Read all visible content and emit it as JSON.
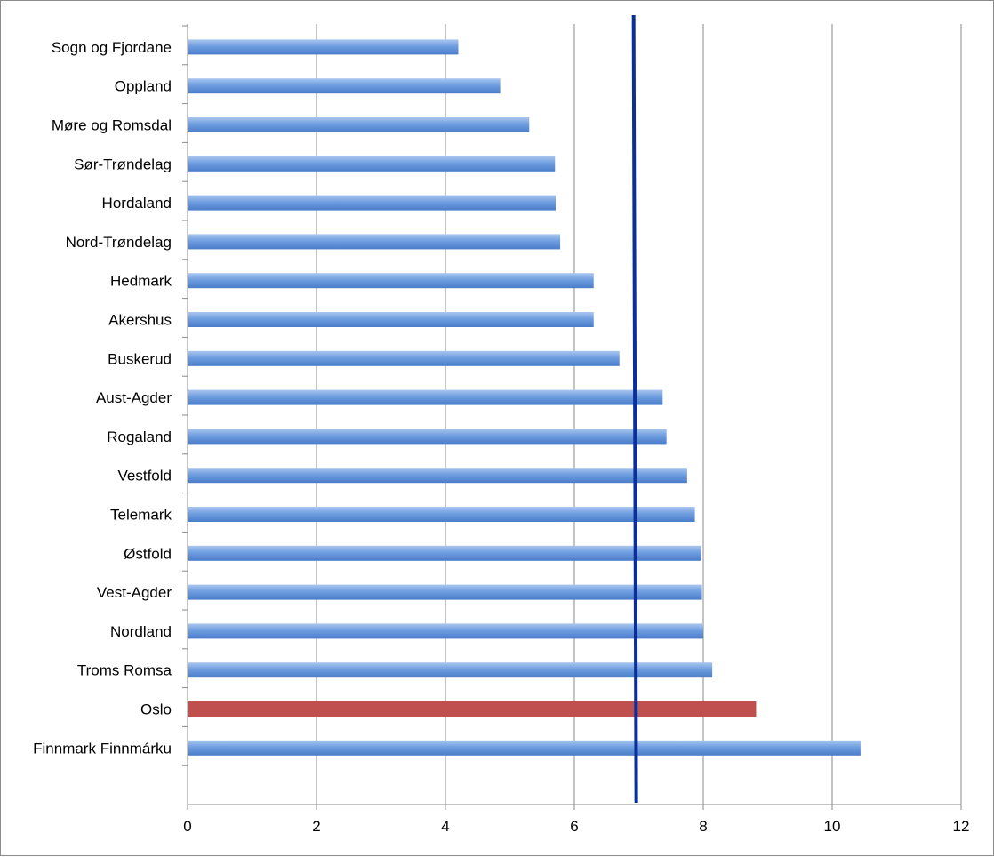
{
  "chart_data": {
    "type": "bar",
    "orientation": "horizontal",
    "title": "",
    "xlabel": "",
    "ylabel": "",
    "categories": [
      "Sogn og Fjordane",
      "Oppland",
      "Møre og Romsdal",
      "Sør-Trøndelag",
      "Hordaland",
      "Nord-Trøndelag",
      "Hedmark",
      "Akershus",
      "Buskerud",
      "Aust-Agder",
      "Rogaland",
      "Vestfold",
      "Telemark",
      "Østfold",
      "Vest-Agder",
      "Nordland",
      "Troms Romsa",
      "Oslo",
      "Finnmark Finnmárku"
    ],
    "values": [
      4.2,
      4.85,
      5.3,
      5.7,
      5.71,
      5.78,
      6.3,
      6.3,
      6.7,
      7.37,
      7.43,
      7.75,
      7.87,
      7.96,
      7.98,
      8.0,
      8.14,
      8.82,
      10.44
    ],
    "highlight": {
      "category": "Oslo",
      "color": "#c0504d"
    },
    "bar_color": "#4f81bd",
    "reference_line": {
      "value": 6.94,
      "color": "#0a2f9a"
    },
    "xlim": [
      0,
      12
    ],
    "xticks": [
      0,
      2,
      4,
      6,
      8,
      10,
      12
    ],
    "grid": true,
    "legend": "none"
  }
}
